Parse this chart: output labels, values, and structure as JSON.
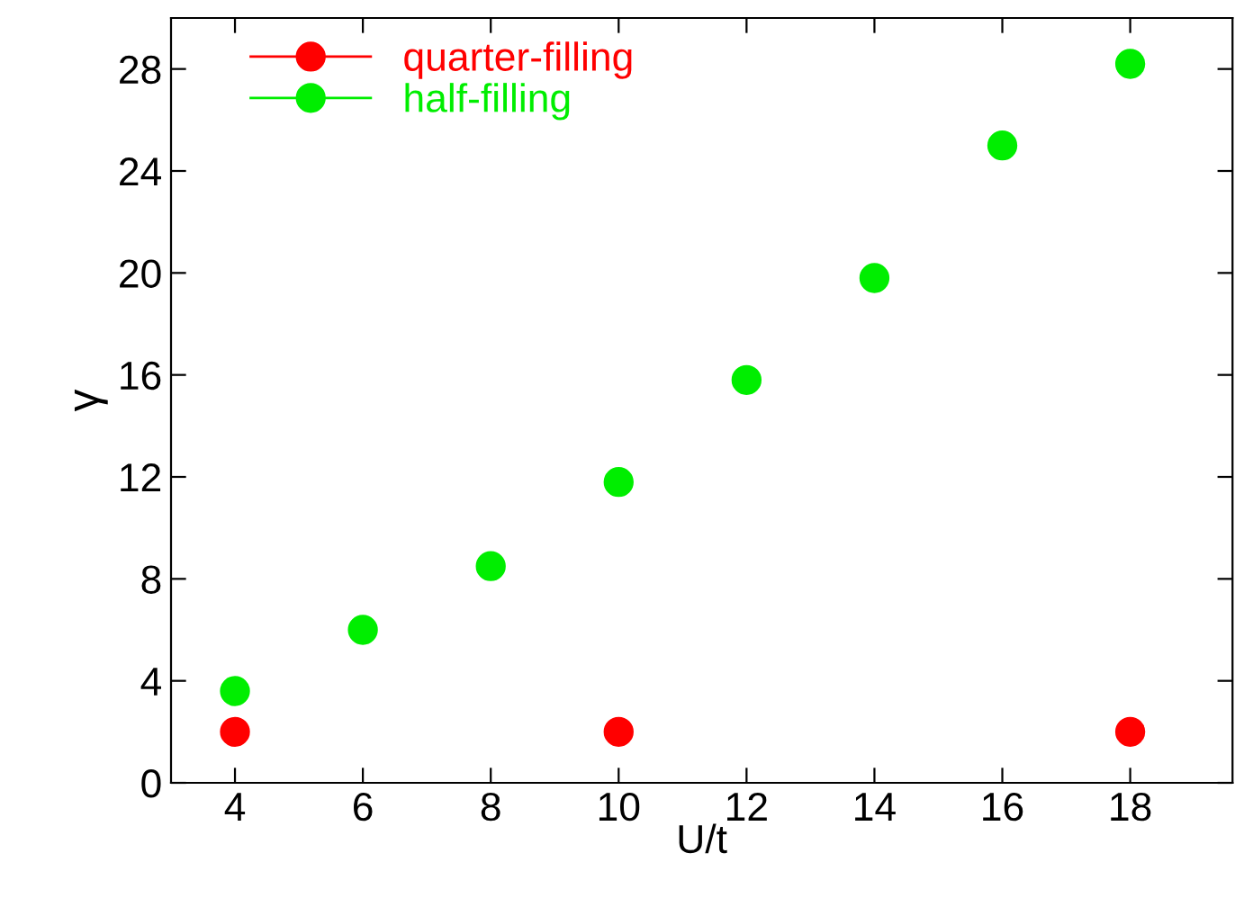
{
  "chart_data": {
    "type": "scatter",
    "xlabel": "U/t",
    "ylabel": "γ",
    "series": [
      {
        "name": "quarter-filling",
        "color": "#ff0000",
        "x": [
          4,
          10,
          18
        ],
        "values": [
          2,
          2,
          2
        ]
      },
      {
        "name": "half-filling",
        "color": "#00ee00",
        "x": [
          4,
          6,
          8,
          10,
          12,
          14,
          16,
          18
        ],
        "values": [
          3.6,
          6.0,
          8.5,
          11.8,
          15.8,
          19.8,
          25.0,
          28.2
        ]
      }
    ],
    "xlim": [
      3,
      19.6
    ],
    "ylim": [
      0,
      30
    ],
    "xticks": [
      4,
      6,
      8,
      10,
      12,
      14,
      16,
      18
    ],
    "yticks": [
      0,
      4,
      8,
      12,
      16,
      20,
      24,
      28
    ],
    "marker": "circle",
    "legend": "top left",
    "grid": false
  }
}
